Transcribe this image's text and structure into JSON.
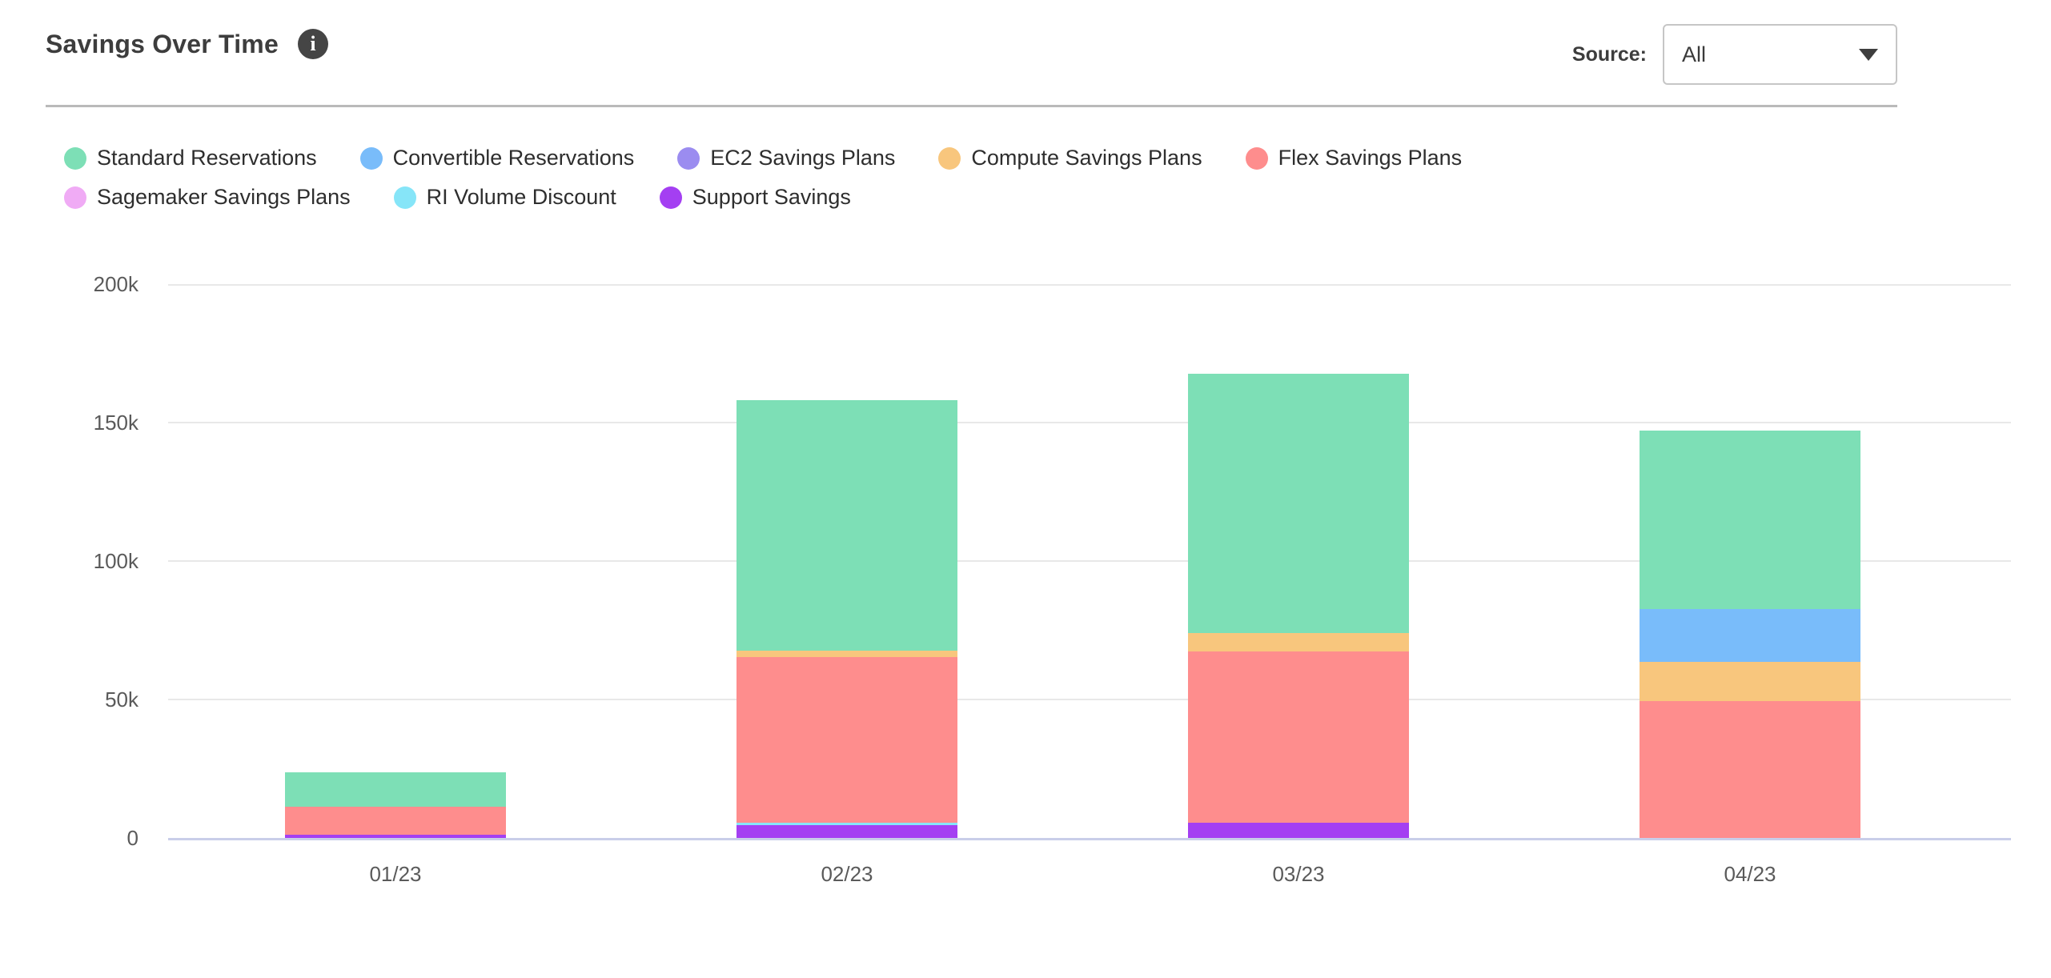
{
  "header": {
    "title": "Savings Over Time",
    "info_icon_glyph": "i",
    "source_label": "Source:",
    "source_value": "All"
  },
  "colors": {
    "divider": "#bababa",
    "gridline": "#e8e8e8",
    "axis_baseline": "#c9cee9",
    "axis_text": "#5a5a5a",
    "legend_text": "#2e2e2e",
    "title_text": "#3d3d3d"
  },
  "chart_data": {
    "type": "bar",
    "stacked": true,
    "title": "Savings Over Time",
    "xlabel": "",
    "ylabel": "",
    "categories": [
      "01/23",
      "02/23",
      "03/23",
      "04/23"
    ],
    "series": [
      {
        "name": "Standard Reservations",
        "color": "#7ddfb6",
        "values": [
          12500,
          90400,
          93500,
          64500
        ]
      },
      {
        "name": "Convertible Reservations",
        "color": "#79bcfa",
        "values": [
          0,
          0,
          0,
          19200
        ]
      },
      {
        "name": "EC2 Savings Plans",
        "color": "#9b8cf0",
        "values": [
          0,
          0,
          0,
          0
        ]
      },
      {
        "name": "Compute Savings Plans",
        "color": "#f8c67d",
        "values": [
          0,
          2200,
          6600,
          14000
        ]
      },
      {
        "name": "Flex Savings Plans",
        "color": "#fe8d8d",
        "values": [
          10000,
          60000,
          62000,
          49500
        ]
      },
      {
        "name": "Sagemaker Savings Plans",
        "color": "#f0abf5",
        "values": [
          0,
          0,
          0,
          0
        ]
      },
      {
        "name": "RI Volume Discount",
        "color": "#86e5f8",
        "values": [
          0,
          800,
          0,
          0
        ]
      },
      {
        "name": "Support Savings",
        "color": "#a43ff2",
        "values": [
          1200,
          4600,
          5400,
          0
        ]
      }
    ],
    "stack_order_bottom_to_top": [
      "Support Savings",
      "RI Volume Discount",
      "Sagemaker Savings Plans",
      "Flex Savings Plans",
      "Compute Savings Plans",
      "EC2 Savings Plans",
      "Convertible Reservations",
      "Standard Reservations"
    ],
    "ylim": [
      0,
      200000
    ],
    "yticks": [
      {
        "value": 0,
        "label": "0"
      },
      {
        "value": 50000,
        "label": "50k"
      },
      {
        "value": 100000,
        "label": "100k"
      },
      {
        "value": 150000,
        "label": "150k"
      },
      {
        "value": 200000,
        "label": "200k"
      }
    ],
    "grid": "horizontal",
    "legend_position": "top-left",
    "legend_rows": [
      5,
      3
    ]
  }
}
